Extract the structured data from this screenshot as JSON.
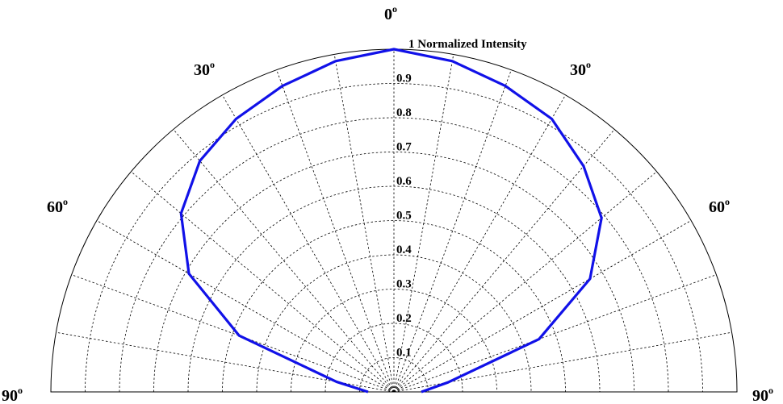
{
  "chart_data": {
    "type": "polar-line",
    "title": "",
    "radial_axis": {
      "label": "Normalized Intensity",
      "range": [
        0,
        1
      ],
      "ticks": [
        "0.1",
        "0.2",
        "0.3",
        "0.4",
        "0.5",
        "0.6",
        "0.7",
        "0.8",
        "0.9",
        "1"
      ]
    },
    "angular_axis": {
      "unit_symbol": "o",
      "range_deg": [
        -90,
        90
      ],
      "tick_labels": [
        {
          "angle": -90,
          "text": "90"
        },
        {
          "angle": -60,
          "text": "60"
        },
        {
          "angle": -30,
          "text": "30"
        },
        {
          "angle": 0,
          "text": "0"
        },
        {
          "angle": 30,
          "text": "30"
        },
        {
          "angle": 60,
          "text": "60"
        },
        {
          "angle": 90,
          "text": "90"
        }
      ],
      "grid_step_deg": 10
    },
    "grid": true,
    "series": [
      {
        "color": "#1111e8",
        "points": [
          {
            "angle": -80,
            "r": 0.17
          },
          {
            "angle": -70,
            "r": 0.48
          },
          {
            "angle": -60,
            "r": 0.69
          },
          {
            "angle": -50,
            "r": 0.81
          },
          {
            "angle": -40,
            "r": 0.88
          },
          {
            "angle": -30,
            "r": 0.92
          },
          {
            "angle": -20,
            "r": 0.95
          },
          {
            "angle": -10,
            "r": 0.98
          },
          {
            "angle": 0,
            "r": 1.0
          },
          {
            "angle": 10,
            "r": 0.98
          },
          {
            "angle": 20,
            "r": 0.95
          },
          {
            "angle": 30,
            "r": 0.92
          },
          {
            "angle": 40,
            "r": 0.86
          },
          {
            "angle": 50,
            "r": 0.79
          },
          {
            "angle": 60,
            "r": 0.66
          },
          {
            "angle": 70,
            "r": 0.45
          },
          {
            "angle": 80,
            "r": 0.16
          }
        ]
      }
    ]
  }
}
